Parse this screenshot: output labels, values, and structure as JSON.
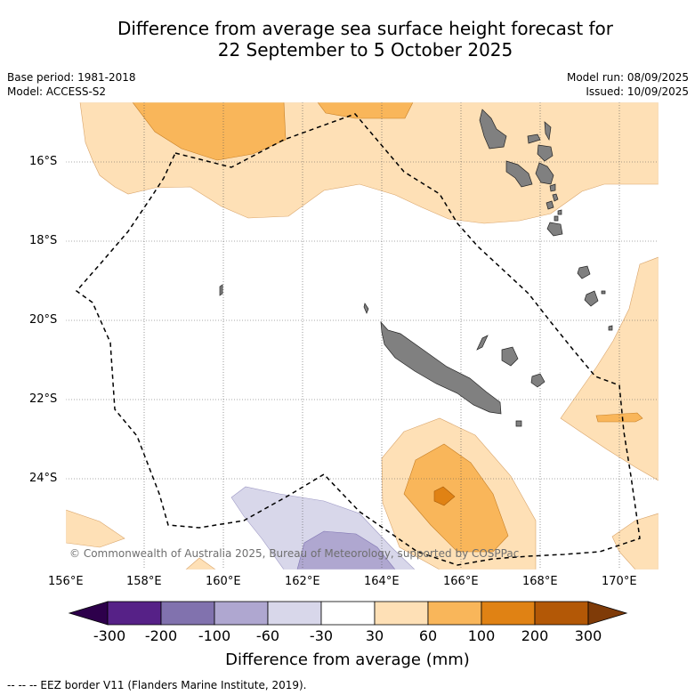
{
  "title_line1": "Difference from average sea surface height forecast for",
  "title_line2": "22 September to 5 October 2025",
  "meta": {
    "base_period": "Base period: 1981-2018",
    "model": "Model: ACCESS-S2",
    "model_run": "Model run: 08/09/2025",
    "issued": "Issued: 10/09/2025"
  },
  "map": {
    "lat_labels": [
      "16°S",
      "18°S",
      "20°S",
      "22°S",
      "24°S"
    ],
    "lon_labels": [
      "156°E",
      "158°E",
      "160°E",
      "162°E",
      "164°E",
      "166°E",
      "168°E",
      "170°E"
    ],
    "copyright": "© Commonwealth of Australia 2025, Bureau of Meteorology, supported by COSPPac"
  },
  "colorbar": {
    "title": "Difference from average (mm)",
    "tick_labels": [
      "-300",
      "-200",
      "-100",
      "-60",
      "-30",
      "30",
      "60",
      "100",
      "200",
      "300"
    ],
    "colors": [
      "#562187",
      "#8172ae",
      "#afa7d0",
      "#d8d7ea",
      "#ffffff",
      "#fee0b6",
      "#f9b65a",
      "#e08214",
      "#b35806"
    ],
    "under_color": "#2d004b",
    "over_color": "#7f3b08"
  },
  "legend_footer": "--  --  -- EEZ border V11 (Flanders Marine Institute, 2019).",
  "colors": {
    "land": "#808080",
    "grid": "#555555"
  }
}
